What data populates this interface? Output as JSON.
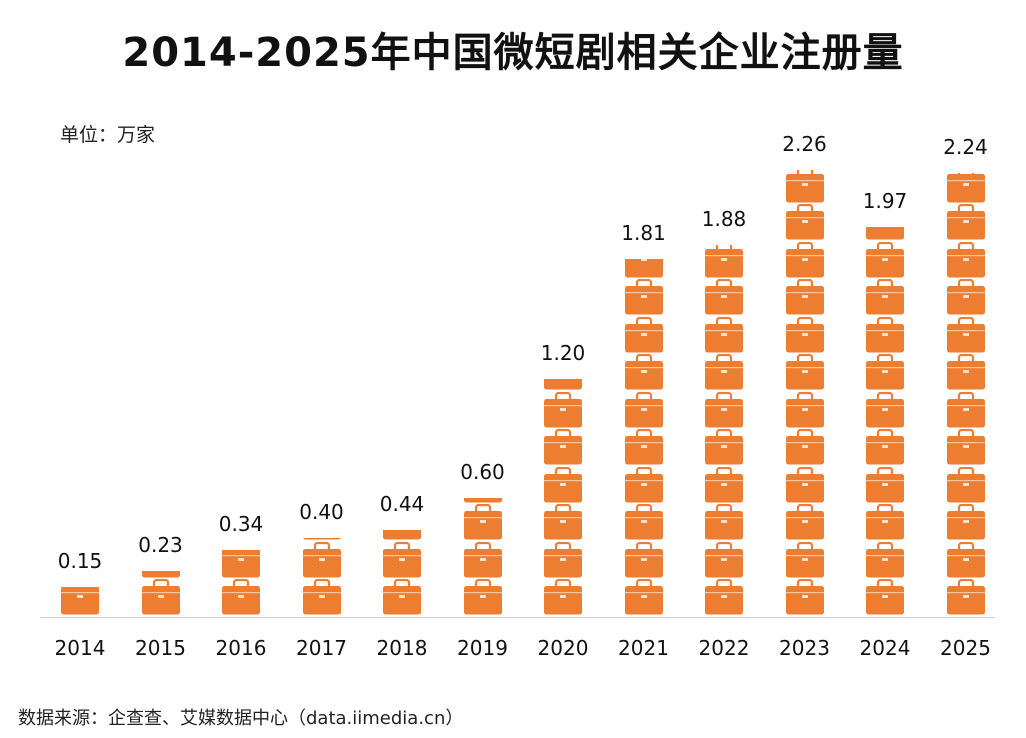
{
  "title": "2014-2025年中国微短剧相关企业注册量",
  "unit_label": "单位：万家",
  "source": "数据来源：企查查、艾媒数据中心（data.iimedia.cn）",
  "chart_data": {
    "type": "bar",
    "style": "pictograph-briefcase",
    "title": "2014-2025年中国微短剧相关企业注册量",
    "ylabel": "单位：万家",
    "categories": [
      "2014",
      "2015",
      "2016",
      "2017",
      "2018",
      "2019",
      "2020",
      "2021",
      "2022",
      "2023",
      "2024",
      "2025"
    ],
    "values": [
      0.15,
      0.23,
      0.34,
      0.4,
      0.44,
      0.6,
      1.2,
      1.81,
      1.88,
      2.26,
      1.97,
      2.24
    ],
    "value_labels": [
      "0.15",
      "0.23",
      "0.34",
      "0.40",
      "0.44",
      "0.60",
      "1.20",
      "1.81",
      "1.88",
      "2.26",
      "1.97",
      "2.24"
    ],
    "color": "#ED7D31",
    "grid": false,
    "legend": "none"
  }
}
